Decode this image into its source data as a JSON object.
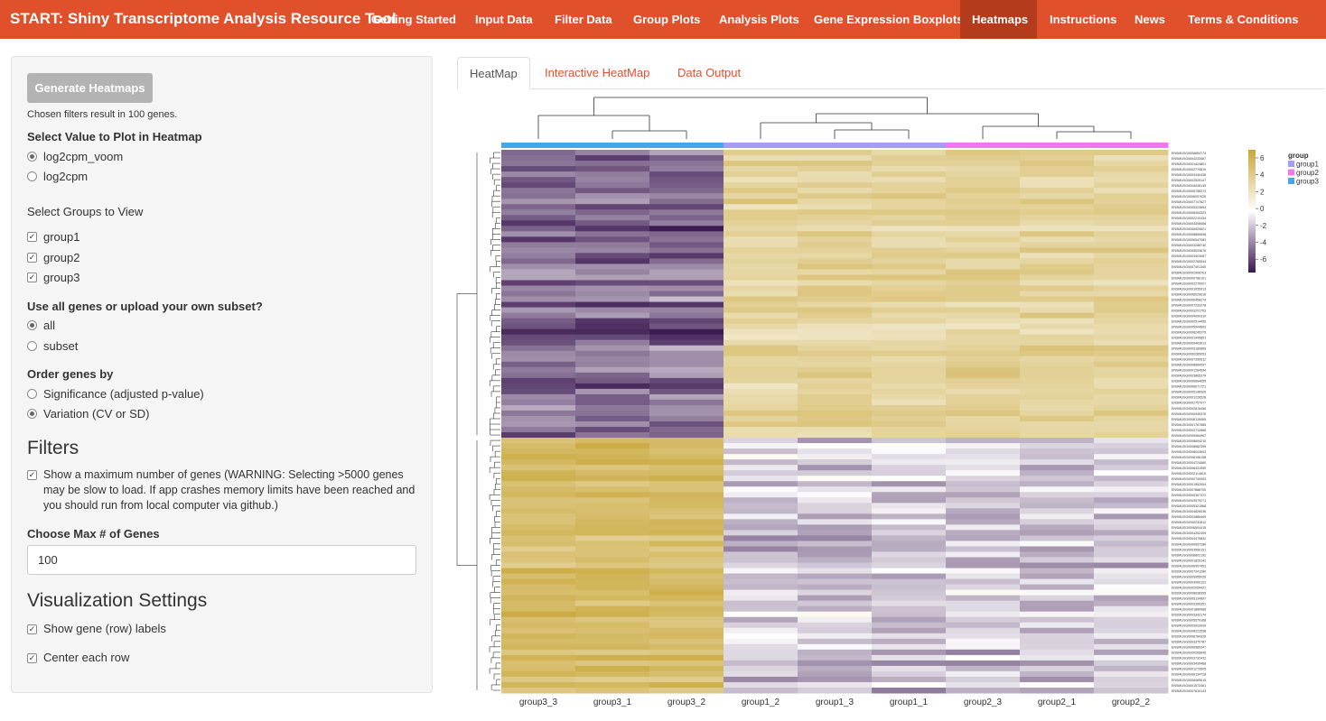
{
  "navbar": {
    "brand": "START: Shiny Transcriptome Analysis Resource Tool",
    "items": [
      "Getting Started",
      "Input Data",
      "Filter Data",
      "Group Plots",
      "Analysis Plots",
      "Gene Expression Boxplots",
      "Heatmaps",
      "Instructions",
      "News",
      "Terms & Conditions"
    ],
    "active": "Heatmaps"
  },
  "sidebar": {
    "generate_button": "Generate Heatmaps",
    "filter_note": "Chosen filters result in 100 genes.",
    "value_label": "Select Value to Plot in Heatmap",
    "value_options": [
      "log2cpm_voom",
      "log2cpm"
    ],
    "value_selected": "log2cpm_voom",
    "groups_label": "Select Groups to View",
    "groups": [
      "group1",
      "group2",
      "group3"
    ],
    "genes_label": "Use all genes or upload your own subset?",
    "genes_options": [
      "all",
      "subset"
    ],
    "genes_selected": "all",
    "order_label": "Order genes by",
    "order_options": [
      "Significance (adjusted p-value)",
      "Variation (CV or SD)"
    ],
    "order_selected": "Variation (CV or SD)",
    "filters_heading": "Filters",
    "max_genes_check": "Show a maximum number of genes (WARNING: Selecting >5000 genes may be slow to load. If app crashes memory limits have been reached and you should run from local computer via github.)",
    "max_genes_label": "Choose Max # of Genes",
    "max_genes_value": "100",
    "viz_heading": "Visualization Settings",
    "show_labels": "Show gene (row) labels",
    "center_rows": "Center each row"
  },
  "tabs": [
    "HeatMap",
    "Interactive HeatMap",
    "Data Output"
  ],
  "active_tab": "HeatMap",
  "heatmap": {
    "columns": [
      "group3_3",
      "group3_1",
      "group3_2",
      "group1_2",
      "group1_3",
      "group1_1",
      "group2_3",
      "group2_1",
      "group2_2"
    ],
    "column_groups": [
      "group3",
      "group3",
      "group3",
      "group1",
      "group1",
      "group1",
      "group2",
      "group2",
      "group2"
    ],
    "legend_title": "group",
    "legend_groups": [
      "group1",
      "group2",
      "group3"
    ],
    "colors": {
      "group1": "#a59df0",
      "group2": "#ef78ee",
      "group3": "#45a7e9",
      "high": "#c9a73a",
      "mid": "#ffffff",
      "low": "#3a1650"
    },
    "scale_ticks": [
      "6",
      "4",
      "2",
      "0",
      "-2",
      "-4",
      "-6"
    ],
    "n_rows": 100,
    "cluster1_rows": 53,
    "row_label_prefix": "ENSMUSG"
  }
}
